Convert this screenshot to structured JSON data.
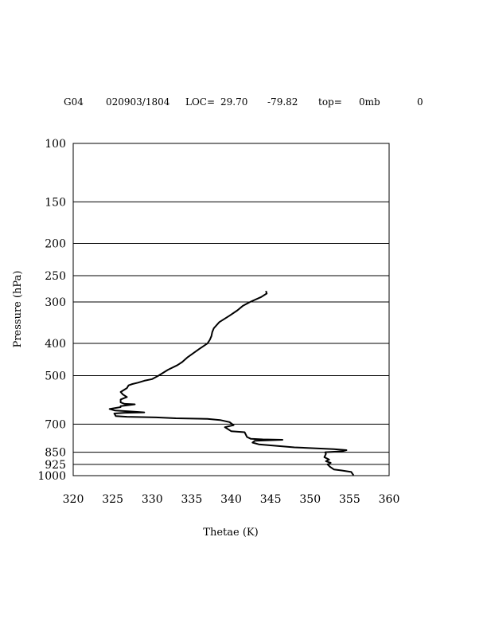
{
  "header": {
    "station": "G04",
    "datetime": "020903/1804",
    "loc_label": "LOC=",
    "lat": "29.70",
    "lon": "-79.82",
    "top_label": "top=",
    "top_value": "0mb",
    "extra": "0"
  },
  "chart_data": {
    "type": "line",
    "title": "",
    "xlabel": "Thetae (K)",
    "ylabel": "Pressure (hPa)",
    "xlim": [
      320,
      360
    ],
    "ylim": [
      1000,
      100
    ],
    "y_scale": "log",
    "grid": "horizontal lines at pressure levels",
    "x_ticks": [
      "320",
      "325",
      "330",
      "335",
      "340",
      "345",
      "350",
      "355",
      "360"
    ],
    "x_tick_values": [
      320,
      325,
      330,
      335,
      340,
      345,
      350,
      355,
      360
    ],
    "y_ticks": [
      "100",
      "150",
      "200",
      "250",
      "300",
      "400",
      "500",
      "700",
      "850",
      "925",
      "1000"
    ],
    "y_tick_values": [
      100,
      150,
      200,
      250,
      300,
      400,
      500,
      700,
      850,
      925,
      1000
    ],
    "series": [
      {
        "x": [
          355.5,
          355.4,
          355.2,
          354.0,
          353.0,
          352.5,
          352.2,
          352.6,
          352.0,
          352.4,
          351.8,
          352.0,
          351.9,
          354.0,
          354.6,
          353.0,
          348.0,
          343.5,
          342.7,
          343.0,
          346.5,
          344.0,
          342.5,
          342.0,
          341.7,
          340.0,
          339.2,
          340.3,
          339.8,
          338.6,
          337.0,
          333.0,
          330.5,
          326.8,
          325.4,
          325.2,
          326.5,
          329.0,
          327.0,
          325.3,
          324.6,
          326.0,
          326.0,
          327.8,
          326.5,
          326.0,
          326.0,
          326.8,
          326.3,
          326.0,
          326.8,
          327.0,
          327.5,
          328.2,
          329.0,
          330.0,
          330.8,
          332.0,
          333.2,
          333.8,
          334.5,
          336.0,
          337.0,
          337.3,
          337.5,
          337.6,
          337.8,
          338.5,
          339.8,
          340.8,
          341.5,
          342.4,
          343.8,
          344.5,
          344.4
        ],
        "y": [
          998,
          990,
          975,
          965,
          958,
          940,
          925,
          915,
          905,
          895,
          880,
          860,
          850,
          845,
          838,
          832,
          822,
          805,
          795,
          785,
          780,
          778,
          775,
          765,
          740,
          735,
          715,
          705,
          690,
          680,
          675,
          672,
          668,
          665,
          662,
          650,
          647,
          645,
          640,
          637,
          630,
          622,
          618,
          610,
          608,
          602,
          590,
          580,
          570,
          560,
          545,
          535,
          530,
          525,
          518,
          512,
          500,
          480,
          465,
          455,
          440,
          415,
          400,
          390,
          380,
          370,
          360,
          345,
          330,
          318,
          308,
          300,
          290,
          283,
          278
        ]
      }
    ]
  }
}
